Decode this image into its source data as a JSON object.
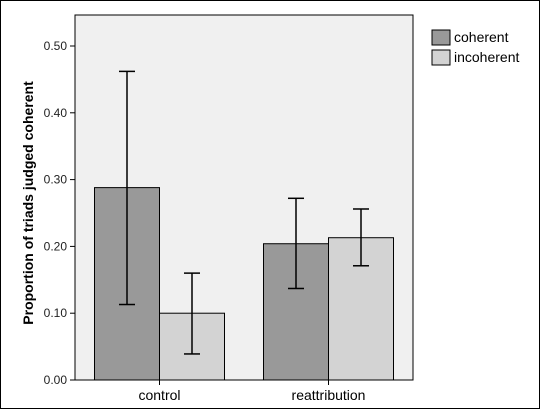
{
  "chart_data": {
    "type": "bar",
    "title": "",
    "xlabel": "",
    "ylabel": "Proportion of triads judged coherent",
    "categories": [
      "control",
      "reattribution"
    ],
    "ylim": [
      0,
      0.5
    ],
    "yticks": [
      "0.00",
      "0.10",
      "0.20",
      "0.30",
      "0.40",
      "0.50"
    ],
    "grid": false,
    "legend": "top-right",
    "error_bars": true,
    "series": [
      {
        "name": "coherent",
        "color": "#999999",
        "values": [
          0.288,
          0.204
        ],
        "error_low": [
          0.113,
          0.137
        ],
        "error_high": [
          0.462,
          0.272
        ]
      },
      {
        "name": "incoherent",
        "color": "#d3d3d3",
        "values": [
          0.1,
          0.213
        ],
        "error_low": [
          0.039,
          0.171
        ],
        "error_high": [
          0.16,
          0.256
        ]
      }
    ]
  },
  "colors": {
    "plot_background": "#f0f0f0",
    "bar_stroke": "#000000"
  }
}
